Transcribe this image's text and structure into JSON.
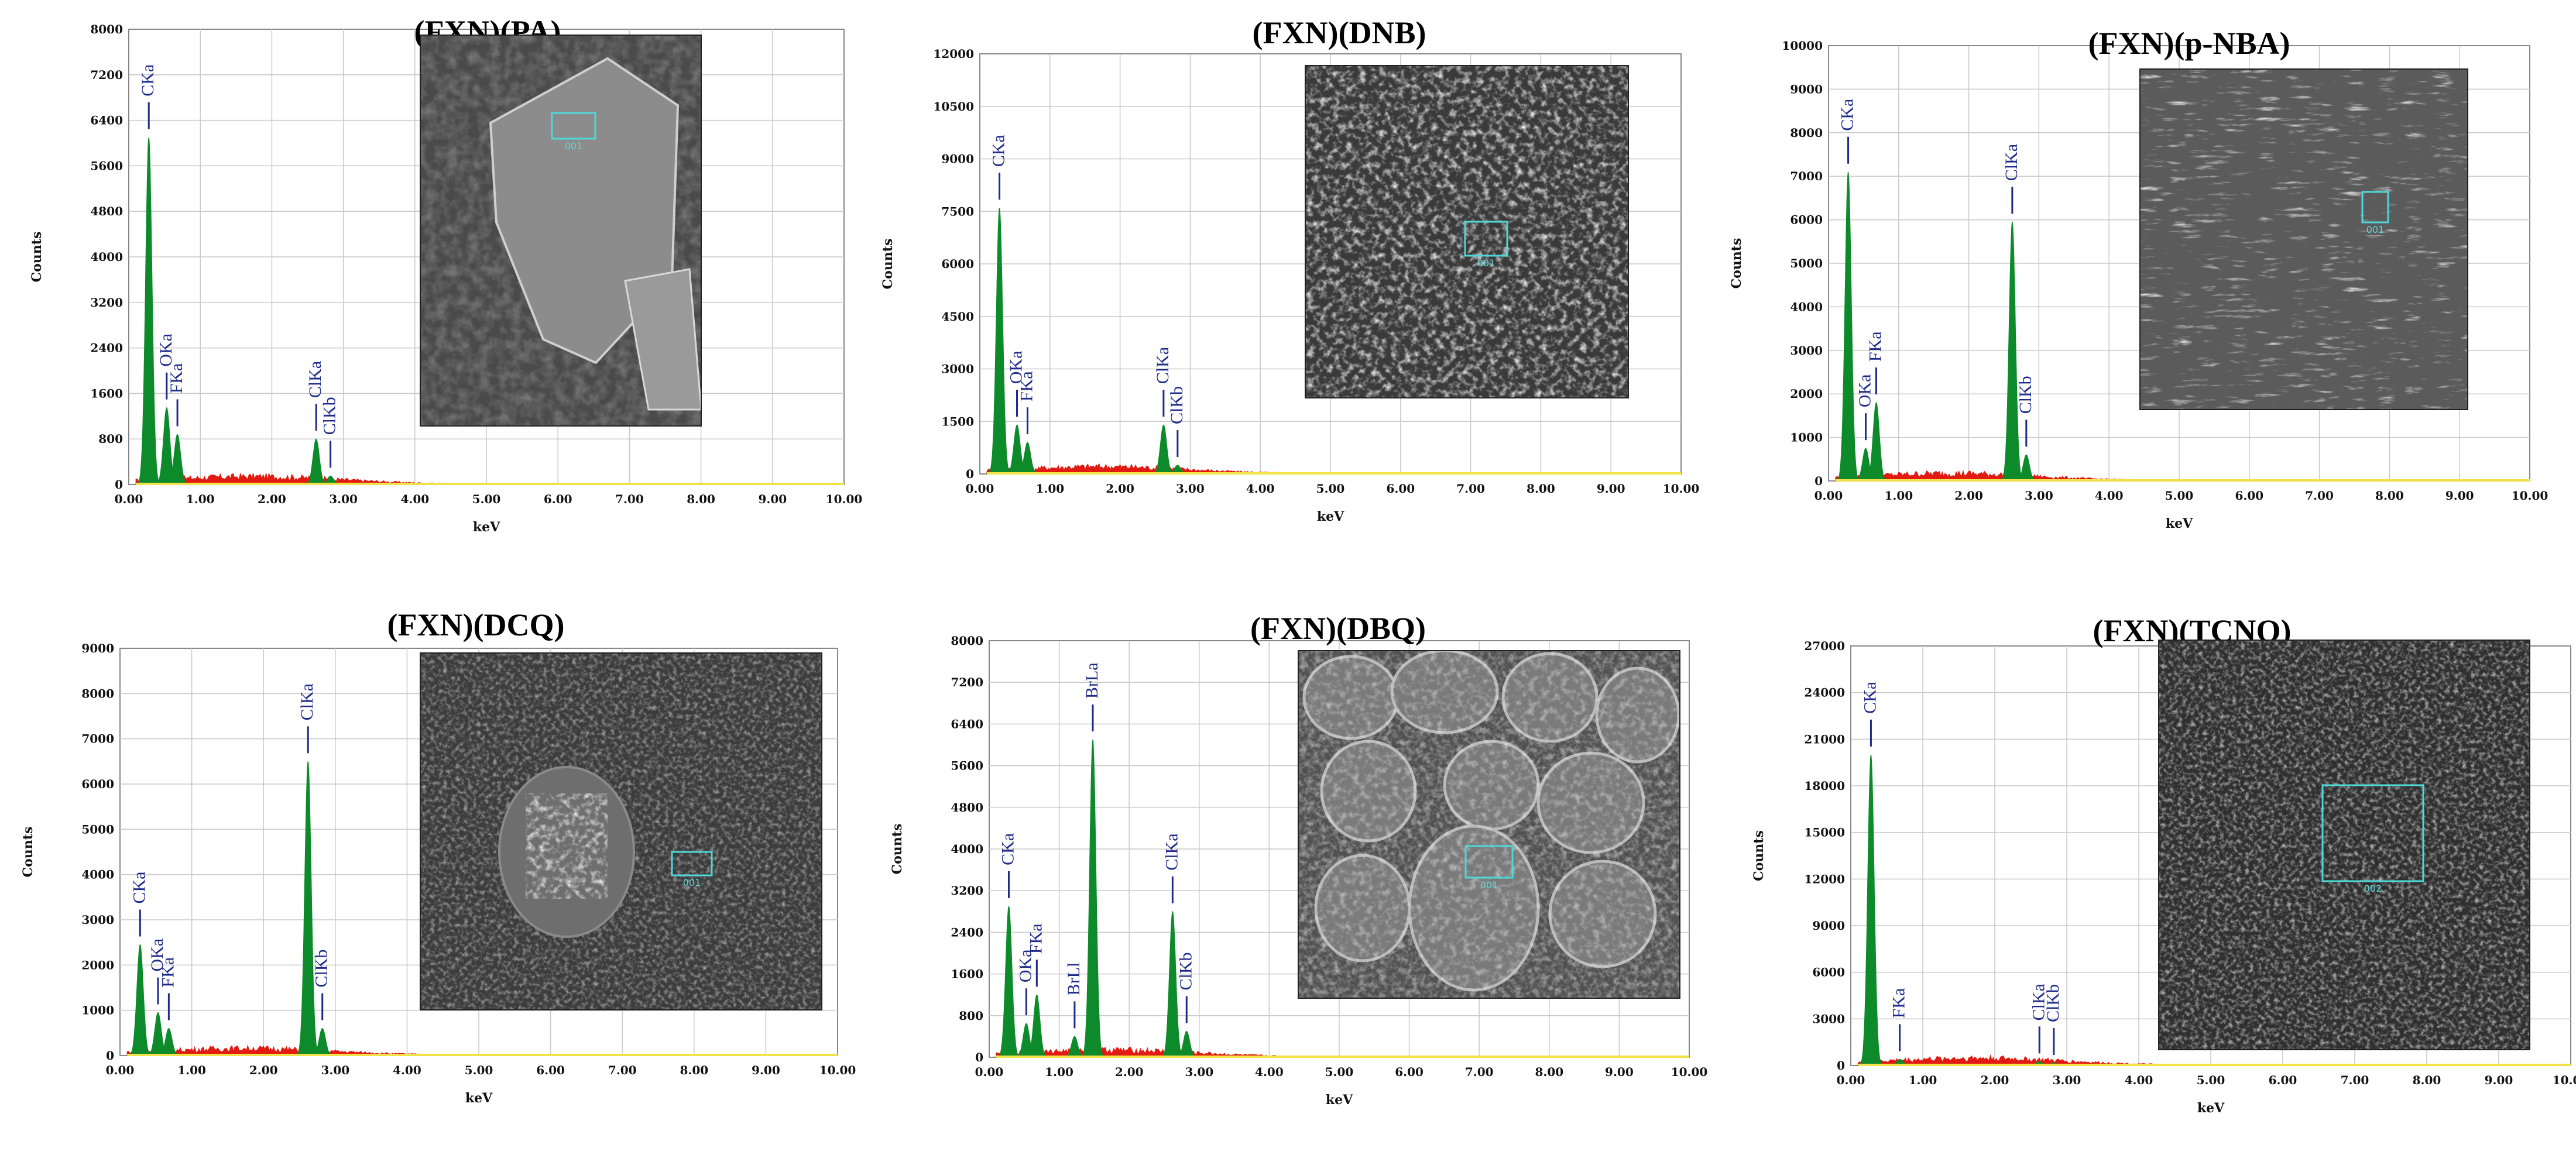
{
  "colors": {
    "peak_fill": "#0d8a2a",
    "background_fill": "#e21b12",
    "baseline": "#f2e24a",
    "grid": "#c9c9c9",
    "peak_label": "#1f2a8a",
    "sem_box": "#4fd8d8"
  },
  "chart_data": [
    {
      "type": "area",
      "title": "(FXN)(PA)",
      "xlabel": "keV",
      "ylabel": "Counts",
      "xlim": [
        0,
        10
      ],
      "ylim": [
        0,
        8000
      ],
      "yticks": [
        "0",
        "800",
        "1600",
        "2400",
        "3200",
        "4000",
        "4800",
        "5600",
        "6400",
        "7200",
        "8000"
      ],
      "xticks": [
        "0.00",
        "1.00",
        "2.00",
        "3.00",
        "4.00",
        "5.00",
        "6.00",
        "7.00",
        "8.00",
        "9.00",
        "10.00"
      ],
      "grid": true,
      "peaks": [
        {
          "energy": 0.28,
          "counts": 6100,
          "label": "CKa"
        },
        {
          "energy": 0.53,
          "counts": 1350,
          "label": "OKa"
        },
        {
          "energy": 0.68,
          "counts": 880,
          "label": "FKa"
        },
        {
          "energy": 2.62,
          "counts": 800,
          "label": "ClKa"
        },
        {
          "energy": 2.82,
          "counts": 150,
          "label": "ClKb"
        }
      ],
      "inset": {
        "sem_label": "001"
      }
    },
    {
      "type": "area",
      "title": "(FXN)(DNB)",
      "xlabel": "keV",
      "ylabel": "Counts",
      "xlim": [
        0,
        10
      ],
      "ylim": [
        0,
        12000
      ],
      "yticks": [
        "0",
        "1500",
        "3000",
        "4500",
        "6000",
        "7500",
        "9000",
        "10500",
        "12000"
      ],
      "xticks": [
        "0.00",
        "1.00",
        "2.00",
        "3.00",
        "4.00",
        "5.00",
        "6.00",
        "7.00",
        "8.00",
        "9.00",
        "10.00"
      ],
      "grid": true,
      "peaks": [
        {
          "energy": 0.28,
          "counts": 7600,
          "label": "CKa"
        },
        {
          "energy": 0.53,
          "counts": 1400,
          "label": "OKa"
        },
        {
          "energy": 0.68,
          "counts": 900,
          "label": "FKa"
        },
        {
          "energy": 2.62,
          "counts": 1400,
          "label": "ClKa"
        },
        {
          "energy": 2.82,
          "counts": 250,
          "label": "ClKb"
        }
      ],
      "inset": {
        "sem_label": "001"
      }
    },
    {
      "type": "area",
      "title": "(FXN)(p-NBA)",
      "xlabel": "keV",
      "ylabel": "Counts",
      "xlim": [
        0,
        10
      ],
      "ylim": [
        0,
        10000
      ],
      "yticks": [
        "0",
        "1000",
        "2000",
        "3000",
        "4000",
        "5000",
        "6000",
        "7000",
        "8000",
        "9000",
        "10000"
      ],
      "xticks": [
        "0.00",
        "1.00",
        "2.00",
        "3.00",
        "4.00",
        "5.00",
        "6.00",
        "7.00",
        "8.00",
        "9.00",
        "10.00"
      ],
      "grid": true,
      "peaks": [
        {
          "energy": 0.28,
          "counts": 7100,
          "label": "CKa"
        },
        {
          "energy": 0.53,
          "counts": 750,
          "label": "OKa"
        },
        {
          "energy": 0.68,
          "counts": 1800,
          "label": "FKa"
        },
        {
          "energy": 2.62,
          "counts": 5950,
          "label": "ClKa"
        },
        {
          "energy": 2.82,
          "counts": 600,
          "label": "ClKb"
        }
      ],
      "inset": {
        "sem_label": "001"
      }
    },
    {
      "type": "area",
      "title": "(FXN)(DCQ)",
      "xlabel": "keV",
      "ylabel": "Counts",
      "xlim": [
        0,
        10
      ],
      "ylim": [
        0,
        9000
      ],
      "yticks": [
        "0",
        "1000",
        "2000",
        "3000",
        "4000",
        "5000",
        "6000",
        "7000",
        "8000",
        "9000"
      ],
      "xticks": [
        "0.00",
        "1.00",
        "2.00",
        "3.00",
        "4.00",
        "5.00",
        "6.00",
        "7.00",
        "8.00",
        "9.00",
        "10.00"
      ],
      "grid": true,
      "peaks": [
        {
          "energy": 0.28,
          "counts": 2450,
          "label": "CKa"
        },
        {
          "energy": 0.53,
          "counts": 950,
          "label": "OKa"
        },
        {
          "energy": 0.68,
          "counts": 600,
          "label": "FKa"
        },
        {
          "energy": 2.62,
          "counts": 6500,
          "label": "ClKa"
        },
        {
          "energy": 2.82,
          "counts": 600,
          "label": "ClKb"
        }
      ],
      "inset": {
        "sem_label": "001"
      }
    },
    {
      "type": "area",
      "title": "(FXN)(DBQ)",
      "xlabel": "keV",
      "ylabel": "Counts",
      "xlim": [
        0,
        10
      ],
      "ylim": [
        0,
        8000
      ],
      "yticks": [
        "0",
        "800",
        "1600",
        "2400",
        "3200",
        "4000",
        "4800",
        "5600",
        "6400",
        "7200",
        "8000"
      ],
      "xticks": [
        "0.00",
        "1.00",
        "2.00",
        "3.00",
        "4.00",
        "5.00",
        "6.00",
        "7.00",
        "8.00",
        "9.00",
        "10.00"
      ],
      "grid": true,
      "peaks": [
        {
          "energy": 0.28,
          "counts": 2900,
          "label": "CKa"
        },
        {
          "energy": 0.53,
          "counts": 650,
          "label": "OKa"
        },
        {
          "energy": 0.68,
          "counts": 1200,
          "label": "FKa"
        },
        {
          "energy": 1.22,
          "counts": 400,
          "label": "BrLl"
        },
        {
          "energy": 1.48,
          "counts": 6100,
          "label": "BrLa"
        },
        {
          "energy": 2.62,
          "counts": 2800,
          "label": "ClKa"
        },
        {
          "energy": 2.82,
          "counts": 500,
          "label": "ClKb"
        }
      ],
      "inset": {
        "sem_label": "001"
      }
    },
    {
      "type": "area",
      "title": "(FXN)(TCNQ)",
      "xlabel": "keV",
      "ylabel": "Counts",
      "xlim": [
        0,
        10
      ],
      "ylim": [
        0,
        27000
      ],
      "yticks": [
        "0",
        "3000",
        "6000",
        "9000",
        "12000",
        "15000",
        "18000",
        "21000",
        "24000",
        "27000"
      ],
      "xticks": [
        "0.00",
        "1.00",
        "2.00",
        "3.00",
        "4.00",
        "5.00",
        "6.00",
        "7.00",
        "8.00",
        "9.00",
        "10.00"
      ],
      "grid": true,
      "peaks": [
        {
          "energy": 0.28,
          "counts": 20000,
          "label": "CKa"
        },
        {
          "energy": 0.68,
          "counts": 400,
          "label": "FKa"
        },
        {
          "energy": 2.62,
          "counts": 250,
          "label": "ClKa"
        },
        {
          "energy": 2.82,
          "counts": 150,
          "label": "ClKb"
        }
      ],
      "inset": {
        "sem_label": "002"
      }
    }
  ]
}
